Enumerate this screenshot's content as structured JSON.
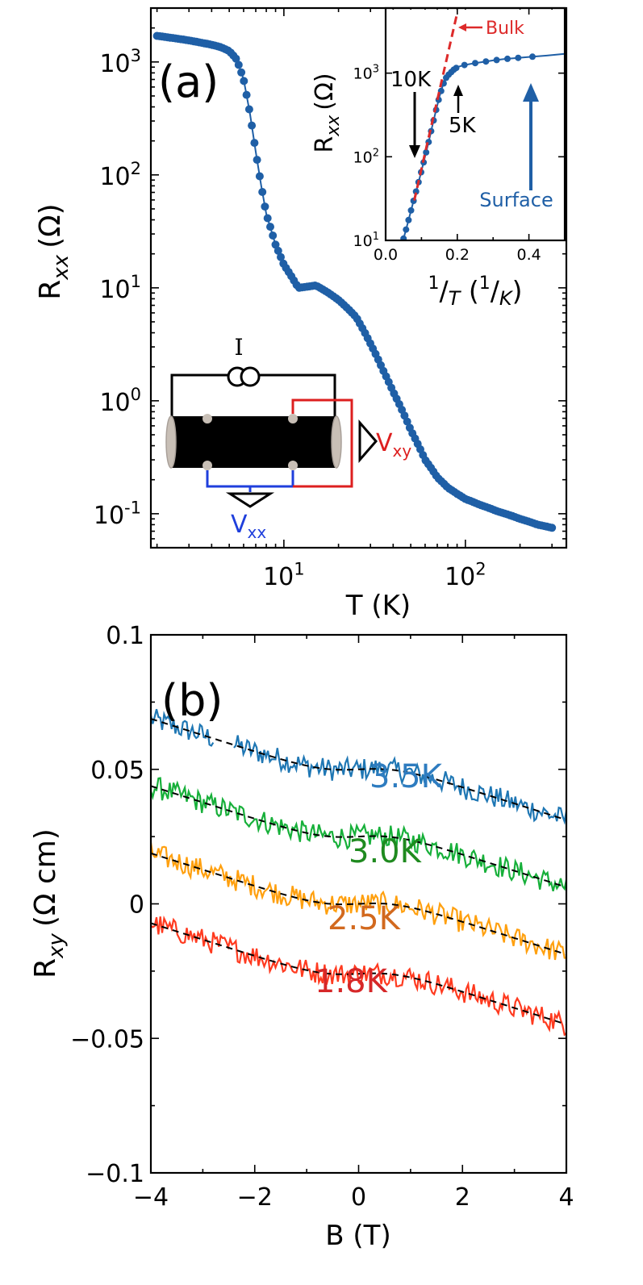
{
  "chart_data": [
    {
      "type": "scatter",
      "panel_label": "(a)",
      "xlabel": "T (K)",
      "ylabel": "R",
      "ylabel_sub": "xx",
      "ylabel_unit": "(Ω)",
      "x_scale": "log",
      "y_scale": "log",
      "xlim": [
        1.85,
        360
      ],
      "ylim": [
        0.05,
        3000
      ],
      "x_ticks": [
        {
          "value": 10,
          "base": "10",
          "exp": "1"
        },
        {
          "value": 100,
          "base": "10",
          "exp": "2"
        }
      ],
      "y_ticks": [
        {
          "value": 0.1,
          "base": "10",
          "exp": "-1"
        },
        {
          "value": 1,
          "base": "10",
          "exp": "0"
        },
        {
          "value": 10,
          "base": "10",
          "exp": "1"
        },
        {
          "value": 100,
          "base": "10",
          "exp": "2"
        },
        {
          "value": 1000,
          "base": "10",
          "exp": "3"
        }
      ],
      "series": [
        {
          "color": "#1f5fa6",
          "style": "line-with-markers",
          "x": [
            2.0,
            2.5,
            3.0,
            3.5,
            4.0,
            4.5,
            5.0,
            5.5,
            6.0,
            6.5,
            7.0,
            7.5,
            8.0,
            9.0,
            10.0,
            12.0,
            15.0,
            18.0,
            20.0,
            25.0,
            30.0,
            35.0,
            40.0,
            50.0,
            60.0,
            70.0,
            80.0,
            90.0,
            100.0,
            120.0,
            150.0,
            200.0,
            250.0,
            300.0
          ],
          "y": [
            1700,
            1620,
            1550,
            1480,
            1420,
            1350,
            1250,
            1050,
            700,
            350,
            160,
            80,
            45,
            24,
            16,
            10,
            10.5,
            8.8,
            7.8,
            5.5,
            3.2,
            1.9,
            1.2,
            0.55,
            0.3,
            0.21,
            0.17,
            0.15,
            0.135,
            0.12,
            0.105,
            0.09,
            0.08,
            0.075
          ]
        }
      ],
      "schematic": {
        "current_label": "I",
        "vxx_label": "V",
        "vxx_sub": "xx",
        "vxy_label": "V",
        "vxy_sub": "xy",
        "sample_color": "#000000",
        "contact_color": "#c8bfb6",
        "vxx_color": "#1f3fdc",
        "vxy_color": "#dd1f1f"
      },
      "inset": {
        "type": "scatter",
        "xlabel": "1/T (1/K)",
        "ylabel": "R",
        "ylabel_sub": "xx",
        "ylabel_unit": "(Ω)",
        "y_scale": "log",
        "xlim": [
          0.0,
          0.5
        ],
        "ylim": [
          10,
          6000
        ],
        "x_ticks": [
          "0.0",
          "0.2",
          "0.4"
        ],
        "x_tick_values": [
          0.0,
          0.2,
          0.4
        ],
        "y_ticks": [
          {
            "value": 10,
            "base": "10",
            "exp": "1"
          },
          {
            "value": 100,
            "base": "10",
            "exp": "2"
          },
          {
            "value": 1000,
            "base": "10",
            "exp": "3"
          }
        ],
        "series": [
          {
            "color": "#1f5fa6",
            "style": "line-with-markers",
            "x": [
              0.05,
              0.06,
              0.07,
              0.08,
              0.09,
              0.1,
              0.11,
              0.12,
              0.13,
              0.14,
              0.15,
              0.16,
              0.17,
              0.18,
              0.19,
              0.2,
              0.22,
              0.25,
              0.28,
              0.3,
              0.33,
              0.36,
              0.4,
              0.45,
              0.5
            ],
            "y": [
              10.5,
              15,
              22,
              32,
              46,
              68,
              100,
              150,
              230,
              350,
              520,
              720,
              900,
              1000,
              1100,
              1180,
              1250,
              1320,
              1380,
              1420,
              1470,
              1510,
              1560,
              1620,
              1700
            ]
          },
          {
            "name": "Bulk",
            "color": "#dd2a2a",
            "style": "dashed",
            "x": [
              0.08,
              0.11,
              0.14,
              0.17,
              0.2
            ],
            "y": [
              30,
              110,
              400,
              1450,
              5300
            ]
          }
        ],
        "annotations": [
          {
            "text": "Bulk",
            "color": "#dd2a2a"
          },
          {
            "text": "10K",
            "color": "#000000"
          },
          {
            "text": "5K",
            "color": "#000000"
          },
          {
            "text": "Surface",
            "color": "#1f5fa6"
          }
        ]
      }
    },
    {
      "type": "line",
      "panel_label": "(b)",
      "xlabel": "B (T)",
      "ylabel": "R",
      "ylabel_sub": "xy",
      "ylabel_unit": "(Ω cm)",
      "xlim": [
        -4,
        4
      ],
      "ylim": [
        -0.1,
        0.1
      ],
      "x_ticks": [
        "−4",
        "−2",
        "0",
        "2",
        "4"
      ],
      "x_tick_values": [
        -4,
        -2,
        0,
        2,
        4
      ],
      "y_ticks": [
        "−0.1",
        "−0.05",
        "0",
        "0.05",
        "0.1"
      ],
      "y_tick_values": [
        -0.1,
        -0.05,
        0,
        0.05,
        0.1
      ],
      "fit_color": "#000000",
      "fit_style": "dashed",
      "series": [
        {
          "name": "3.5K",
          "color": "#1f77b4",
          "label_color": "#2e7cc0",
          "offset": 0.05,
          "gap": [
            -2.8,
            -2.4
          ]
        },
        {
          "name": "3.0K",
          "color": "#17b03a",
          "label_color": "#1f8a1f",
          "offset": 0.025
        },
        {
          "name": "2.5K",
          "color": "#ffa00f",
          "label_color": "#d2691e",
          "offset": 0.0
        },
        {
          "name": "1.8K",
          "color": "#ff3a1f",
          "label_color": "#d62728",
          "offset": -0.026
        }
      ]
    }
  ]
}
